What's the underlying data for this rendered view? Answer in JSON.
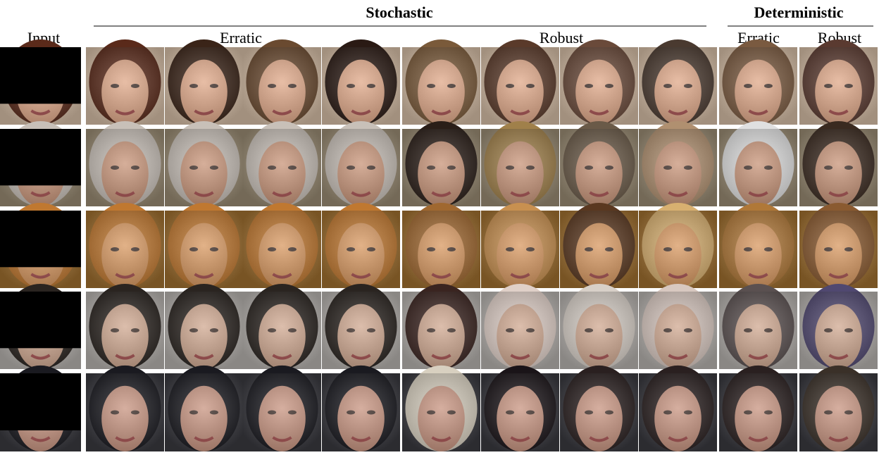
{
  "header": {
    "groups": [
      {
        "title": "Stochastic"
      },
      {
        "title": "Deterministic"
      }
    ],
    "columns": [
      "Input",
      "Erratic",
      "Robust",
      "Erratic",
      "Robust"
    ]
  }
}
